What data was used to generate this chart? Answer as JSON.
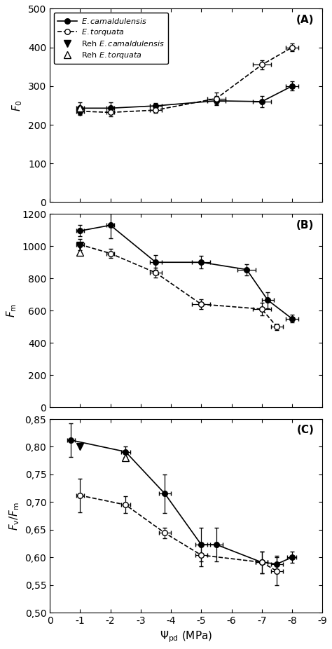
{
  "panel_A": {
    "title": "(A)",
    "ylabel": "$F_0$",
    "ylim": [
      0,
      500
    ],
    "yticks": [
      0,
      100,
      200,
      300,
      400,
      500
    ],
    "ecam_x": [
      -1.0,
      -2.0,
      -3.5,
      -5.5,
      -7.0,
      -8.0
    ],
    "ecam_y": [
      243,
      243,
      249,
      262,
      260,
      300
    ],
    "ecam_xerr": [
      0.12,
      0.12,
      0.2,
      0.3,
      0.3,
      0.2
    ],
    "ecam_yerr": [
      15,
      15,
      8,
      12,
      15,
      12
    ],
    "ctor_x": [
      -1.0,
      -2.0,
      -3.5,
      -5.5,
      -7.0,
      -8.0
    ],
    "ctor_y": [
      235,
      232,
      238,
      268,
      355,
      400
    ],
    "ctor_xerr": [
      0.12,
      0.12,
      0.2,
      0.3,
      0.3,
      0.2
    ],
    "ctor_yerr": [
      10,
      10,
      8,
      15,
      12,
      10
    ],
    "reh_ecam_x": [
      -1.0
    ],
    "reh_ecam_y": [
      232
    ],
    "reh_ctor_x": [
      -1.0
    ],
    "reh_ctor_y": [
      244
    ]
  },
  "panel_B": {
    "title": "(B)",
    "ylabel": "$F_\\mathrm{m}$",
    "ylim": [
      0,
      1200
    ],
    "yticks": [
      0,
      200,
      400,
      600,
      800,
      1000,
      1200
    ],
    "ecam_x": [
      -1.0,
      -2.0,
      -3.5,
      -5.0,
      -6.5,
      -7.2,
      -8.0
    ],
    "ecam_y": [
      1095,
      1130,
      900,
      900,
      855,
      665,
      550
    ],
    "ecam_xerr": [
      0.12,
      0.12,
      0.2,
      0.3,
      0.3,
      0.2,
      0.2
    ],
    "ecam_yerr": [
      35,
      80,
      45,
      40,
      35,
      50,
      25
    ],
    "ctor_x": [
      -1.0,
      -2.0,
      -3.5,
      -5.0,
      -7.0,
      -7.5
    ],
    "ctor_y": [
      1010,
      955,
      835,
      640,
      610,
      500
    ],
    "ctor_xerr": [
      0.12,
      0.12,
      0.2,
      0.3,
      0.3,
      0.2
    ],
    "ctor_yerr": [
      35,
      30,
      30,
      30,
      40,
      20
    ],
    "reh_ecam_x": [
      -1.0
    ],
    "reh_ecam_y": [
      1005
    ],
    "reh_ctor_x": [
      -1.0
    ],
    "reh_ctor_y": [
      960
    ]
  },
  "panel_C": {
    "title": "(C)",
    "ylabel": "$F_\\mathrm{v}/F_\\mathrm{m}$",
    "ylim": [
      0.5,
      0.85
    ],
    "yticks": [
      0.5,
      0.55,
      0.6,
      0.65,
      0.7,
      0.75,
      0.8,
      0.85
    ],
    "ytick_labels": [
      "0,50",
      "0,55",
      "0,60",
      "0,65",
      "0,70",
      "0,75",
      "0,80",
      "0,85"
    ],
    "ecam_x": [
      -0.7,
      -2.5,
      -3.8,
      -5.0,
      -5.5,
      -7.0,
      -7.5,
      -8.0
    ],
    "ecam_y": [
      0.812,
      0.791,
      0.715,
      0.623,
      0.623,
      0.591,
      0.588,
      0.6
    ],
    "ecam_xerr": [
      0.12,
      0.15,
      0.2,
      0.2,
      0.2,
      0.2,
      0.2,
      0.15
    ],
    "ecam_yerr": [
      0.03,
      0.01,
      0.035,
      0.03,
      0.03,
      0.02,
      0.015,
      0.01
    ],
    "ctor_x": [
      -1.0,
      -2.5,
      -3.8,
      -5.0,
      -7.0,
      -7.5
    ],
    "ctor_y": [
      0.712,
      0.695,
      0.644,
      0.604,
      0.591,
      0.575
    ],
    "ctor_xerr": [
      0.12,
      0.15,
      0.2,
      0.2,
      0.2,
      0.2
    ],
    "ctor_yerr": [
      0.03,
      0.015,
      0.01,
      0.02,
      0.02,
      0.025
    ],
    "reh_ecam_x": [
      -1.0
    ],
    "reh_ecam_y": [
      0.8
    ],
    "reh_ctor_x": [
      -2.5
    ],
    "reh_ctor_y": [
      0.78
    ]
  },
  "xlim": [
    0,
    -9
  ],
  "xticks": [
    0,
    -1,
    -2,
    -3,
    -4,
    -5,
    -6,
    -7,
    -8,
    -9
  ],
  "xtick_labels": [
    "0",
    "-1",
    "-2",
    "-3",
    "-4",
    "-5",
    "-6",
    "-7",
    "-8",
    "-9"
  ],
  "xlabel": "$\\Psi_\\mathrm{pd}$ (MPa)",
  "bg_color": "#ffffff"
}
